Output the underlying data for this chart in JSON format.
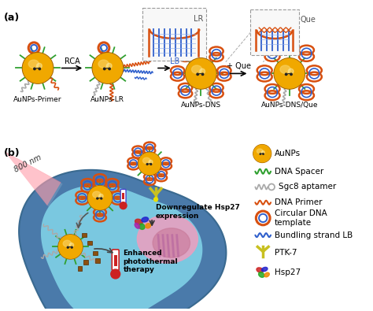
{
  "title_a": "(a)",
  "title_b": "(b)",
  "bg_color": "#ffffff",
  "cell_outer_color": "#4a7aaa",
  "cell_mid_color": "#5a9ec8",
  "cell_inner_color": "#7ac8e0",
  "nucleus_color": "#e8a0c0",
  "nucleus_inner_color": "#c87898",
  "aunp_color": "#f0a800",
  "aunp_highlight": "#f8d060",
  "aunp_shadow": "#c07800",
  "dna_spacer_color": "#30a030",
  "sgc8_color": "#aaaaaa",
  "dna_primer_color": "#d85010",
  "circular_dna_outer": "#d85010",
  "circular_dna_inner": "#3060cc",
  "bundling_color": "#3060cc",
  "ptk7_color": "#c8c020",
  "laser_color": "#ff8090",
  "brown_color": "#8B5010",
  "labels": {
    "aunps": "AuNPs",
    "dna_spacer": "DNA Spacer",
    "sgc8": "Sgc8 aptamer",
    "dna_primer": "DNA Primer",
    "circular_dna": "Circular DNA\ntemplate",
    "bundling": "Bundling strand LB",
    "ptk7": "PTK-7",
    "hsp27": "Hsp27"
  },
  "step_labels": [
    "AuNPs-Primer",
    "AuNPs-LR",
    "AuNPs-DNS",
    "AuNPs-DNS/Que"
  ],
  "arrow_label_rca": "RCA",
  "arrow_label_que": "+ Que",
  "inset_label_lr": "LR",
  "inset_label_lb": "LB",
  "inset_label_que": "Que",
  "cell_text_nm": "800 nm",
  "cell_text_down": "Downregulate Hsp27\nexpression",
  "cell_text_enhanced": "Enhanced\nphotothermal\ntherapy",
  "label_fontsize": 6.5
}
